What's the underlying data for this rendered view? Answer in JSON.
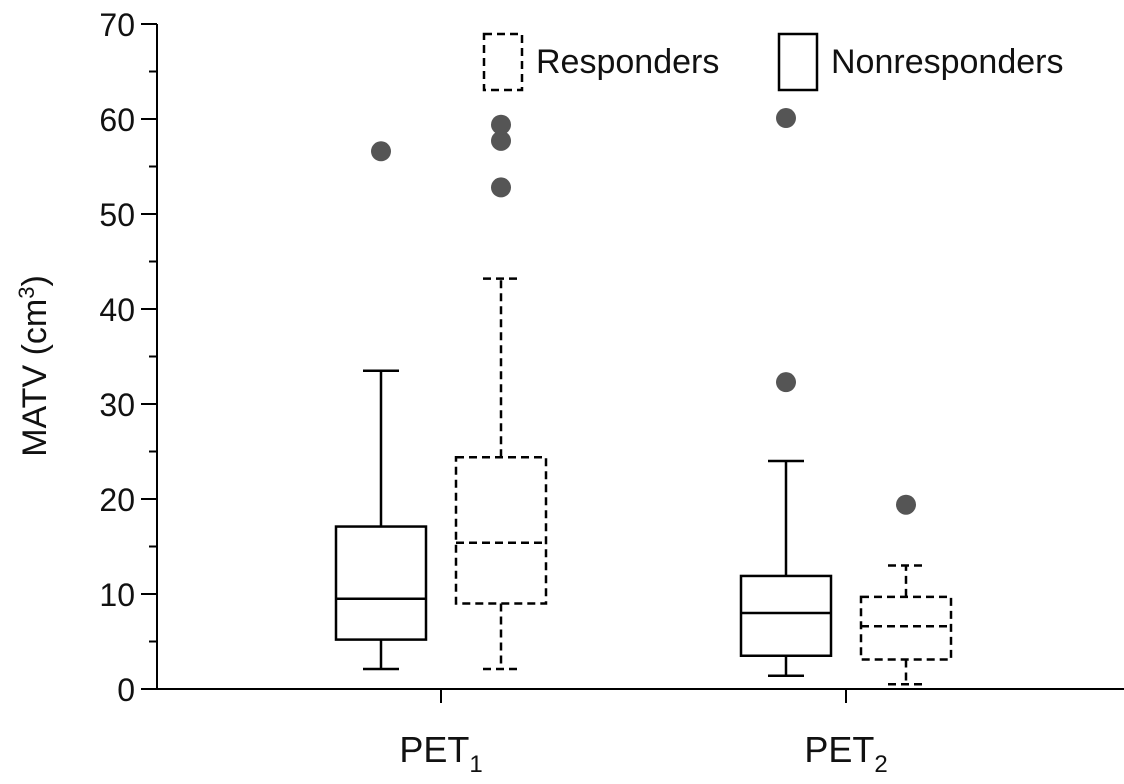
{
  "chart_data": {
    "type": "box",
    "ylabel": "MATV (cm",
    "ylabel_sup": "3",
    "ylabel_close": ")",
    "ylim": [
      0,
      70
    ],
    "y_ticks": [
      0,
      10,
      20,
      30,
      40,
      50,
      60,
      70
    ],
    "y_minor_step": 5,
    "categories": [
      {
        "base": "PET",
        "sub": "1"
      },
      {
        "base": "PET",
        "sub": "2"
      }
    ],
    "legend": {
      "placement": "top-right",
      "entries": [
        {
          "label": "Responders",
          "style": "dashed"
        },
        {
          "label": "Nonresponders",
          "style": "solid"
        }
      ]
    },
    "series": [
      {
        "name": "Nonresponders",
        "style": "solid",
        "boxes": [
          {
            "category": "PET1",
            "whisker_low": 2.1,
            "q1": 5.2,
            "median": 9.5,
            "q3": 17.1,
            "whisker_high": 33.5,
            "outliers": [
              56.6
            ]
          },
          {
            "category": "PET2",
            "whisker_low": 1.4,
            "q1": 3.5,
            "median": 8.0,
            "q3": 11.9,
            "whisker_high": 24.0,
            "outliers": [
              32.3,
              60.1
            ]
          }
        ]
      },
      {
        "name": "Responders",
        "style": "dashed",
        "boxes": [
          {
            "category": "PET1",
            "whisker_low": 2.1,
            "q1": 9.0,
            "median": 15.4,
            "q3": 24.4,
            "whisker_high": 43.2,
            "outliers": [
              52.8,
              57.7,
              59.4
            ]
          },
          {
            "category": "PET2",
            "whisker_low": 0.5,
            "q1": 3.1,
            "median": 6.6,
            "q3": 9.7,
            "whisker_high": 13.0,
            "outliers": [
              19.4
            ]
          }
        ]
      }
    ],
    "colors": {
      "line": "#000000",
      "outlier": "#555555"
    }
  }
}
